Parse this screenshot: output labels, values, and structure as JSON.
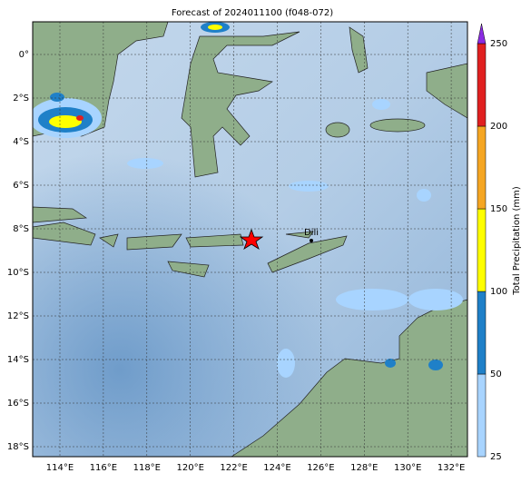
{
  "title": "Forecast of 2024011100 (f048-072)",
  "lon_labels": [
    "114°E",
    "116°E",
    "118°E",
    "120°E",
    "122°E",
    "124°E",
    "126°E",
    "128°E",
    "130°E",
    "132°E"
  ],
  "lat_labels": [
    "0°",
    "2°S",
    "4°S",
    "6°S",
    "8°S",
    "10°S",
    "12°S",
    "14°S",
    "16°S",
    "18°S"
  ],
  "city": "Dili",
  "colorbar": {
    "label": "Total Precipitation (mm)",
    "ticks": [
      "25",
      "50",
      "100",
      "150",
      "200",
      "250"
    ],
    "colors": [
      "#a8d4ff",
      "#1f80c8",
      "#ffff00",
      "#f5a623",
      "#e02020"
    ],
    "extend_color": "#8a2be2"
  }
}
